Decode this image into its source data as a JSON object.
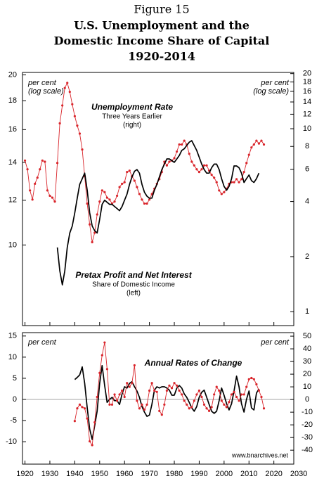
{
  "title": [
    "Figure 15",
    "U.S. Unemployment and the",
    "Domestic Income Share of Capital",
    "1920-2014"
  ],
  "chart_data": [
    {
      "type": "line",
      "log_scale": true,
      "y_label": "per cent",
      "y_label_note": "(log scale)",
      "y2_label": "per cent",
      "y2_label_note": "(log scale)",
      "xlim": [
        1919,
        2028
      ],
      "ylim": [
        7.2,
        20.2
      ],
      "yticks": [
        10,
        12,
        14,
        16,
        18,
        20
      ],
      "y2lim": [
        0.84,
        20.3
      ],
      "y2ticks": [
        1,
        2,
        4,
        6,
        8,
        10,
        12,
        14,
        16,
        18,
        20
      ],
      "series": [
        {
          "name": "Unemployment Rate",
          "notes": [
            "Three Years Earlier",
            "(right)"
          ],
          "color": "#d9252b",
          "axis": "y2",
          "markers": true,
          "x": [
            1920,
            1921,
            1922,
            1923,
            1924,
            1925,
            1926,
            1927,
            1928,
            1929,
            1930,
            1931,
            1932,
            1933,
            1934,
            1935,
            1936,
            1937,
            1938,
            1939,
            1940,
            1941,
            1942,
            1943,
            1944,
            1945,
            1946,
            1947,
            1948,
            1949,
            1950,
            1951,
            1952,
            1953,
            1954,
            1955,
            1956,
            1957,
            1958,
            1959,
            1960,
            1961,
            1962,
            1963,
            1964,
            1965,
            1966,
            1967,
            1968,
            1969,
            1970,
            1971,
            1972,
            1973,
            1974,
            1975,
            1976,
            1977,
            1978,
            1979,
            1980,
            1981,
            1982,
            1983,
            1984,
            1985,
            1986,
            1987,
            1988,
            1989,
            1990,
            1991,
            1992,
            1993,
            1994,
            1995,
            1996,
            1997,
            1998,
            1999,
            2000,
            2001,
            2002,
            2003,
            2004,
            2005,
            2006,
            2007,
            2008,
            2009,
            2010,
            2011,
            2012,
            2013,
            2014,
            2015,
            2016
          ],
          "values": [
            6.7,
            6.0,
            4.6,
            4.1,
            5.0,
            5.4,
            6.0,
            6.7,
            6.6,
            4.6,
            4.3,
            4.2,
            4.0,
            6.5,
            10.7,
            13.4,
            16.7,
            17.8,
            15.9,
            13.6,
            11.7,
            10.4,
            9.4,
            7.7,
            5.5,
            3.9,
            3.0,
            2.4,
            2.7,
            3.4,
            4.0,
            4.6,
            4.5,
            4.2,
            4.1,
            3.9,
            4.0,
            4.3,
            4.8,
            5.0,
            5.1,
            5.8,
            5.9,
            5.5,
            5.2,
            4.8,
            4.4,
            4.1,
            3.9,
            3.9,
            4.1,
            4.4,
            4.7,
            5.0,
            5.3,
            5.8,
            6.6,
            6.3,
            6.6,
            6.7,
            6.9,
            7.5,
            8.2,
            8.2,
            8.6,
            8.2,
            7.3,
            6.6,
            6.3,
            6.0,
            5.8,
            6.0,
            6.3,
            6.3,
            5.9,
            5.6,
            5.4,
            5.1,
            4.6,
            4.4,
            4.5,
            4.7,
            5.0,
            5.1,
            5.1,
            5.3,
            5.1,
            5.3,
            5.8,
            6.5,
            7.2,
            7.9,
            8.2,
            8.6,
            8.3,
            8.6,
            8.2
          ]
        },
        {
          "name": "Pretax Profit and Net Interest",
          "notes": [
            "Share of Domestic Income",
            "(left)"
          ],
          "color": "#000000",
          "axis": "y",
          "markers": false,
          "x": [
            1933,
            1934,
            1935,
            1936,
            1937,
            1938,
            1939,
            1940,
            1941,
            1942,
            1943,
            1944,
            1945,
            1946,
            1947,
            1948,
            1949,
            1950,
            1951,
            1952,
            1953,
            1954,
            1955,
            1956,
            1957,
            1958,
            1959,
            1960,
            1961,
            1962,
            1963,
            1964,
            1965,
            1966,
            1967,
            1968,
            1969,
            1970,
            1971,
            1972,
            1973,
            1974,
            1975,
            1976,
            1977,
            1978,
            1979,
            1980,
            1981,
            1982,
            1983,
            1984,
            1985,
            1986,
            1987,
            1988,
            1989,
            1990,
            1991,
            1992,
            1993,
            1994,
            1995,
            1996,
            1997,
            1998,
            1999,
            2000,
            2001,
            2002,
            2003,
            2004,
            2005,
            2006,
            2007,
            2008,
            2009,
            2010,
            2011,
            2012,
            2013,
            2014
          ],
          "values": [
            9.9,
            9.0,
            8.5,
            9.0,
            9.9,
            10.5,
            10.8,
            11.4,
            12.1,
            12.8,
            13.1,
            13.4,
            12.5,
            11.4,
            10.8,
            10.6,
            10.5,
            11.1,
            11.8,
            12.0,
            11.9,
            11.8,
            11.8,
            11.7,
            11.6,
            11.5,
            11.7,
            12.0,
            12.3,
            12.8,
            13.2,
            13.5,
            13.6,
            13.4,
            12.8,
            12.4,
            12.2,
            12.1,
            12.1,
            12.5,
            12.8,
            13.2,
            13.6,
            13.9,
            14.2,
            14.2,
            14.1,
            14.0,
            14.2,
            14.4,
            14.7,
            14.8,
            15.0,
            15.2,
            15.3,
            15.0,
            14.7,
            14.3,
            13.9,
            13.6,
            13.4,
            13.4,
            13.7,
            13.9,
            13.9,
            13.6,
            13.1,
            12.7,
            12.5,
            12.7,
            13.1,
            13.8,
            13.8,
            13.7,
            13.4,
            12.9,
            13.1,
            13.3,
            13.0,
            12.9,
            13.1,
            13.4
          ]
        }
      ]
    },
    {
      "type": "line",
      "title": "Annual Rates of Change",
      "source": "www.bnarchives.net",
      "y_label": "per cent",
      "y2_label": "per cent",
      "zero_line": true,
      "xlim": [
        1919,
        2028
      ],
      "xticks": [
        1920,
        1930,
        1940,
        1950,
        1960,
        1970,
        1980,
        1990,
        2000,
        2010,
        2020,
        2030
      ],
      "ylim": [
        -15.3,
        15.8
      ],
      "yticks": [
        -10,
        -5,
        0,
        5,
        10,
        15
      ],
      "y2lim": [
        -51,
        52.8
      ],
      "y2ticks": [
        -40,
        -30,
        -20,
        -10,
        0,
        10,
        20,
        30,
        40,
        50
      ],
      "series": [
        {
          "color": "#000000",
          "axis": "y",
          "markers": false,
          "x": [
            1940,
            1941,
            1942,
            1943,
            1944,
            1945,
            1946,
            1947,
            1948,
            1949,
            1950,
            1951,
            1952,
            1953,
            1954,
            1955,
            1956,
            1957,
            1958,
            1959,
            1960,
            1961,
            1962,
            1963,
            1964,
            1965,
            1966,
            1967,
            1968,
            1969,
            1970,
            1971,
            1972,
            1973,
            1974,
            1975,
            1976,
            1977,
            1978,
            1979,
            1980,
            1981,
            1982,
            1983,
            1984,
            1985,
            1986,
            1987,
            1988,
            1989,
            1990,
            1991,
            1992,
            1993,
            1994,
            1995,
            1996,
            1997,
            1998,
            1999,
            2000,
            2001,
            2002,
            2003,
            2004,
            2005,
            2006,
            2007,
            2008,
            2009,
            2010,
            2011,
            2012,
            2013,
            2014
          ],
          "values": [
            4.7,
            5.2,
            5.8,
            7.7,
            3.8,
            -2,
            -7,
            -9.5,
            -6.2,
            -2.8,
            3.8,
            8,
            3.3,
            -0.7,
            0,
            0.5,
            -0.3,
            -0.3,
            -1.2,
            1.3,
            3,
            2.7,
            3.8,
            4.2,
            3,
            2,
            0.5,
            -1.7,
            -3,
            -4,
            -3.7,
            -1.2,
            2.2,
            3,
            2.7,
            3,
            3,
            2.7,
            2.2,
            1,
            1,
            2.7,
            3.3,
            2.7,
            1.3,
            0.5,
            -0.7,
            -2,
            -2.8,
            -1.7,
            0.5,
            1.7,
            2.2,
            0.5,
            -1.2,
            -2.8,
            -3.3,
            -2.8,
            -0.3,
            2.7,
            1,
            -1,
            -2.5,
            -1,
            2,
            5.5,
            3,
            -1,
            -3,
            0,
            2,
            -2,
            -2.5,
            1.5,
            2.5
          ]
        },
        {
          "color": "#d9252b",
          "axis": "y2",
          "markers": true,
          "x": [
            1940,
            1941,
            1942,
            1943,
            1944,
            1945,
            1946,
            1947,
            1948,
            1949,
            1950,
            1951,
            1952,
            1953,
            1954,
            1955,
            1956,
            1957,
            1958,
            1959,
            1960,
            1961,
            1962,
            1963,
            1964,
            1965,
            1966,
            1967,
            1968,
            1969,
            1970,
            1971,
            1972,
            1973,
            1974,
            1975,
            1976,
            1977,
            1978,
            1979,
            1980,
            1981,
            1982,
            1983,
            1984,
            1985,
            1986,
            1987,
            1988,
            1989,
            1990,
            1991,
            1992,
            1993,
            1994,
            1995,
            1996,
            1997,
            1998,
            1999,
            2000,
            2001,
            2002,
            2003,
            2004,
            2005,
            2006,
            2007,
            2008,
            2009,
            2010,
            2011,
            2012,
            2013,
            2014,
            2015,
            2016
          ],
          "values": [
            -17,
            -7,
            -4,
            -6,
            -7,
            -15,
            -33,
            -36,
            -18,
            2,
            21,
            35,
            45,
            24,
            -4,
            -4,
            4,
            -1,
            4,
            7,
            2,
            13,
            10,
            13,
            27,
            -1,
            -7,
            -4,
            -8,
            -4,
            7,
            13,
            7,
            6,
            -9,
            -12,
            -4,
            7,
            11,
            9,
            13,
            11,
            7,
            4,
            -1,
            -4,
            -7,
            -6,
            -1,
            4,
            7,
            2,
            -4,
            -7,
            -9,
            -6,
            4,
            10,
            7,
            -1,
            -4,
            -6,
            -2,
            4,
            6,
            2,
            -1,
            4,
            4,
            10,
            16,
            17,
            16,
            12,
            7,
            2,
            -7
          ]
        }
      ]
    }
  ]
}
